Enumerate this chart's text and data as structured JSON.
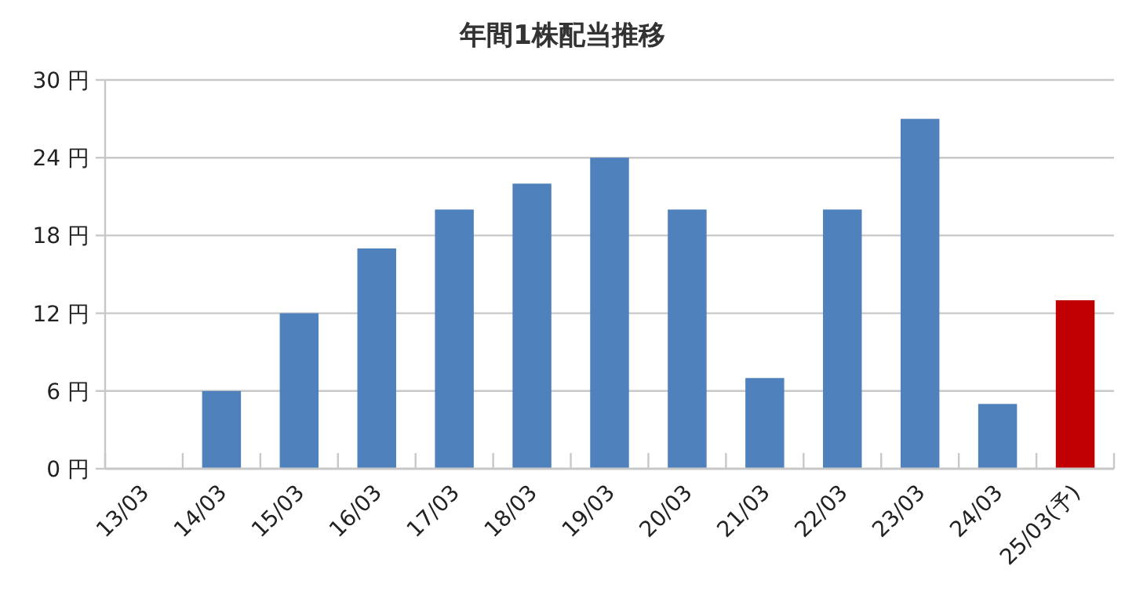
{
  "chart_data": {
    "type": "bar",
    "title": "年間1株配当推移",
    "categories": [
      "13/03",
      "14/03",
      "15/03",
      "16/03",
      "17/03",
      "18/03",
      "19/03",
      "20/03",
      "21/03",
      "22/03",
      "23/03",
      "24/03",
      "25/03(予)"
    ],
    "values": [
      0,
      6,
      12,
      17,
      20,
      22,
      24,
      20,
      7,
      20,
      27,
      5,
      13
    ],
    "colors": [
      "#4f81bd",
      "#4f81bd",
      "#4f81bd",
      "#4f81bd",
      "#4f81bd",
      "#4f81bd",
      "#4f81bd",
      "#4f81bd",
      "#4f81bd",
      "#4f81bd",
      "#4f81bd",
      "#4f81bd",
      "#c00000"
    ],
    "ylim": [
      0,
      30
    ],
    "yticks": [
      {
        "value": 0,
        "label": "0 円"
      },
      {
        "value": 6,
        "label": "6 円"
      },
      {
        "value": 12,
        "label": "12 円"
      },
      {
        "value": 18,
        "label": "18 円"
      },
      {
        "value": 24,
        "label": "24 円"
      },
      {
        "value": 30,
        "label": "30 円"
      }
    ],
    "grid": "y"
  }
}
